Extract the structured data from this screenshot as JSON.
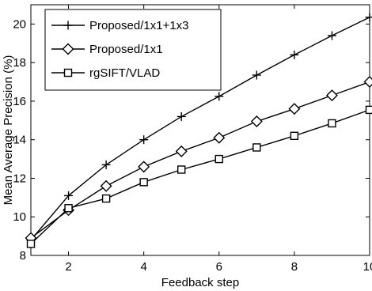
{
  "chart_data": {
    "type": "line",
    "title": "",
    "xlabel": "Feedback step",
    "ylabel": "Mean Average Precision (%)",
    "xlim": [
      1,
      10
    ],
    "ylim": [
      8,
      21
    ],
    "x_ticks": [
      2,
      4,
      6,
      8,
      10
    ],
    "y_ticks": [
      8,
      10,
      12,
      14,
      16,
      18,
      20
    ],
    "grid": false,
    "legend_position": "top-left",
    "x": [
      1,
      2,
      3,
      4,
      5,
      6,
      7,
      8,
      9,
      10
    ],
    "series": [
      {
        "name": "Proposed/1x1+1x3",
        "marker": "plus",
        "color": "#000000",
        "values": [
          8.8,
          11.1,
          12.7,
          14.0,
          15.2,
          16.25,
          17.35,
          18.4,
          19.4,
          20.35
        ]
      },
      {
        "name": "Proposed/1x1",
        "marker": "diamond",
        "color": "#000000",
        "values": [
          8.9,
          10.35,
          11.6,
          12.6,
          13.4,
          14.1,
          14.95,
          15.6,
          16.3,
          17.0
        ]
      },
      {
        "name": "rgSIFT/VLAD",
        "marker": "square",
        "color": "#000000",
        "values": [
          8.6,
          10.45,
          10.95,
          11.8,
          12.45,
          13.0,
          13.6,
          14.2,
          14.85,
          15.55
        ]
      }
    ]
  }
}
